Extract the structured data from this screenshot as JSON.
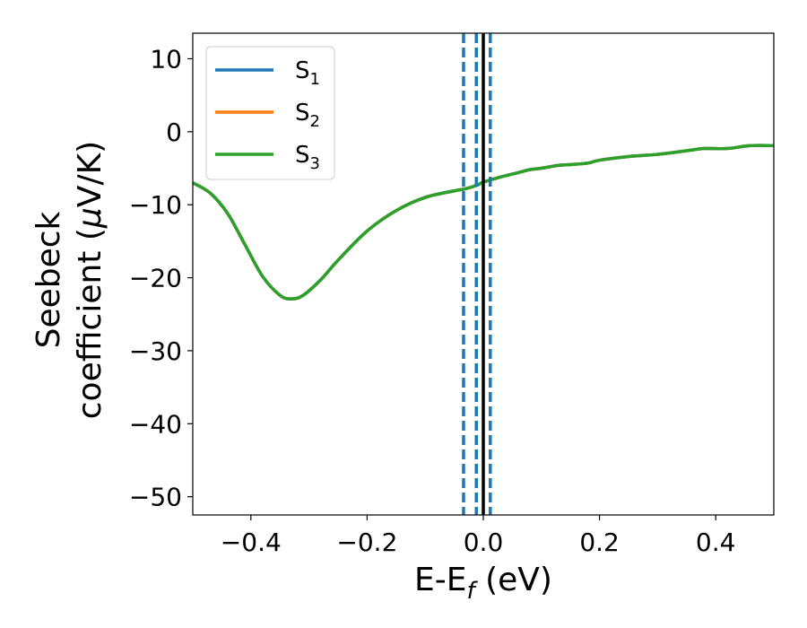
{
  "chart_data": {
    "type": "line",
    "xlabel": "E-E",
    "xlabel_subscript": "f",
    "xlabel_unit": " (eV)",
    "ylabel_line1": "Seebeck",
    "ylabel_line2_prefix": "coefficient  (",
    "ylabel_line2_mu": "μ",
    "ylabel_line2_suffix": "V/K)",
    "xlim": [
      -0.5,
      0.5
    ],
    "ylim": [
      -52.5,
      13.5
    ],
    "xticks": [
      -0.4,
      -0.2,
      0.0,
      0.2,
      0.4
    ],
    "xtick_labels": [
      "−0.4",
      "−0.2",
      "0.0",
      "0.2",
      "0.4"
    ],
    "yticks": [
      10,
      0,
      -10,
      -20,
      -30,
      -40,
      -50
    ],
    "ytick_labels": [
      "10",
      "0",
      "−10",
      "−20",
      "−30",
      "−40",
      "−50"
    ],
    "grid": false,
    "legend_position": "top-left",
    "vlines": [
      {
        "x": -0.034,
        "style": "dashed",
        "color": "#1f77b4"
      },
      {
        "x": -0.012,
        "style": "dashed",
        "color": "#1f77b4"
      },
      {
        "x": 0.0,
        "style": "solid",
        "color": "#000000"
      },
      {
        "x": 0.012,
        "style": "dashed",
        "color": "#1f77b4"
      }
    ],
    "x": [
      -0.5,
      -0.47,
      -0.44,
      -0.41,
      -0.38,
      -0.35,
      -0.33,
      -0.31,
      -0.28,
      -0.25,
      -0.2,
      -0.15,
      -0.1,
      -0.05,
      -0.03,
      -0.01,
      0.0,
      0.03,
      0.06,
      0.08,
      0.1,
      0.13,
      0.15,
      0.18,
      0.2,
      0.25,
      0.3,
      0.35,
      0.38,
      0.42,
      0.46,
      0.5
    ],
    "series": [
      {
        "name": "S",
        "subscript": "1",
        "color": "#1f77b4",
        "values": [
          -7.0,
          -8.4,
          -11.2,
          -15.5,
          -19.8,
          -22.4,
          -22.9,
          -22.4,
          -20.3,
          -17.6,
          -13.6,
          -10.8,
          -9.0,
          -8.1,
          -7.8,
          -7.3,
          -6.9,
          -6.2,
          -5.6,
          -5.2,
          -5.0,
          -4.6,
          -4.5,
          -4.3,
          -3.9,
          -3.4,
          -3.1,
          -2.6,
          -2.3,
          -2.3,
          -1.9,
          -1.9
        ]
      },
      {
        "name": "S",
        "subscript": "2",
        "color": "#ff7f0e",
        "values": [
          -7.0,
          -8.4,
          -11.2,
          -15.5,
          -19.8,
          -22.4,
          -22.9,
          -22.4,
          -20.3,
          -17.6,
          -13.6,
          -10.8,
          -9.0,
          -8.1,
          -7.8,
          -7.3,
          -6.9,
          -6.2,
          -5.6,
          -5.2,
          -5.0,
          -4.6,
          -4.5,
          -4.3,
          -3.9,
          -3.4,
          -3.1,
          -2.6,
          -2.3,
          -2.3,
          -1.9,
          -1.9
        ]
      },
      {
        "name": "S",
        "subscript": "3",
        "color": "#2ca02c",
        "values": [
          -7.0,
          -8.4,
          -11.2,
          -15.5,
          -19.8,
          -22.4,
          -22.9,
          -22.4,
          -20.3,
          -17.6,
          -13.6,
          -10.8,
          -9.0,
          -8.1,
          -7.8,
          -7.3,
          -6.9,
          -6.2,
          -5.6,
          -5.2,
          -5.0,
          -4.6,
          -4.5,
          -4.3,
          -3.9,
          -3.4,
          -3.1,
          -2.6,
          -2.3,
          -2.3,
          -1.9,
          -1.9
        ]
      }
    ]
  }
}
